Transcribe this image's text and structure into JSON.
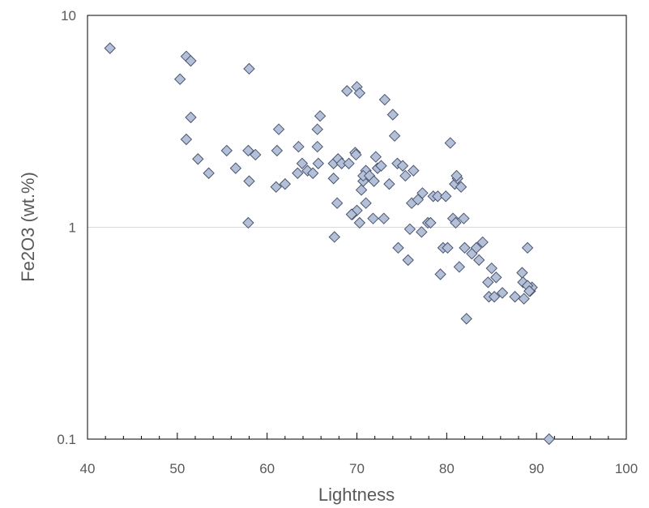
{
  "chart_data": {
    "type": "scatter",
    "title": "",
    "xlabel": "Lightness",
    "ylabel": "Fe2O3 (wt.%)",
    "xlim": [
      40,
      100
    ],
    "ylim": [
      0.1,
      10
    ],
    "y_scale": "log",
    "x_ticks": [
      40,
      50,
      60,
      70,
      80,
      90,
      100
    ],
    "x_tick_labels": [
      "40",
      "50",
      "60",
      "70",
      "80",
      "90",
      "100"
    ],
    "y_ticks": [
      0.1,
      1,
      10
    ],
    "y_tick_labels": [
      "0.1",
      "1",
      "10"
    ],
    "grid": "horizontal major lines",
    "legend": "none",
    "marker": "diamond",
    "marker_fill": "#b4c0d8",
    "marker_stroke": "#4a5570",
    "series": [
      {
        "name": "",
        "x": [
          42.5,
          51.0,
          51.5,
          50.3,
          58.0,
          51.5,
          51.0,
          52.3,
          53.5,
          55.5,
          56.5,
          57.9,
          58.0,
          58.7,
          57.9,
          61.3,
          61.1,
          61.0,
          62.0,
          63.5,
          63.9,
          63.4,
          64.5,
          65.1,
          65.6,
          65.9,
          65.6,
          65.7,
          67.4,
          67.5,
          67.9,
          67.8,
          67.4,
          68.3,
          68.9,
          69.1,
          69.5,
          69.8,
          70.0,
          70.3,
          70.5,
          70.0,
          70.3,
          69.4,
          69.9,
          70.7,
          71.0,
          70.7,
          71.0,
          71.4,
          71.8,
          71.9,
          72.1,
          72.3,
          72.7,
          73.1,
          73.0,
          73.6,
          74.0,
          74.2,
          74.5,
          74.6,
          75.1,
          75.4,
          75.7,
          75.9,
          76.1,
          76.3,
          76.8,
          77.2,
          77.3,
          77.9,
          78.2,
          78.5,
          79.0,
          79.3,
          79.6,
          79.9,
          80.4,
          80.1,
          80.7,
          80.9,
          81.0,
          81.2,
          81.1,
          81.4,
          81.6,
          81.9,
          82.0,
          82.2,
          82.8,
          83.3,
          83.6,
          84.0,
          84.6,
          84.7,
          85.0,
          85.3,
          85.5,
          86.2,
          87.6,
          88.4,
          88.5,
          88.6,
          89.0,
          89.3,
          89.5,
          89.0,
          89.2,
          91.4
        ],
        "y": [
          7.0,
          6.4,
          6.1,
          5.0,
          5.6,
          3.3,
          2.6,
          2.1,
          1.8,
          2.3,
          1.9,
          2.3,
          1.65,
          2.2,
          1.05,
          2.9,
          2.3,
          1.55,
          1.6,
          2.4,
          2.0,
          1.8,
          1.85,
          1.8,
          2.4,
          3.35,
          2.9,
          2.0,
          2.0,
          0.9,
          2.1,
          1.3,
          1.7,
          2.0,
          4.4,
          2.0,
          1.15,
          2.25,
          4.6,
          4.3,
          1.5,
          1.2,
          1.05,
          1.15,
          2.2,
          1.65,
          1.85,
          1.75,
          1.3,
          1.75,
          1.1,
          1.65,
          2.15,
          1.9,
          1.95,
          4.0,
          1.1,
          1.6,
          3.4,
          2.7,
          2.0,
          0.8,
          1.95,
          1.75,
          0.7,
          0.98,
          1.3,
          1.85,
          1.35,
          0.95,
          1.45,
          1.05,
          1.05,
          1.4,
          1.4,
          0.6,
          0.8,
          1.4,
          2.5,
          0.8,
          1.1,
          1.6,
          1.05,
          1.7,
          1.75,
          0.65,
          1.55,
          1.1,
          0.8,
          0.37,
          0.75,
          0.8,
          0.7,
          0.85,
          0.55,
          0.47,
          0.64,
          0.47,
          0.58,
          0.49,
          0.47,
          0.61,
          0.55,
          0.46,
          0.8,
          0.5,
          0.52,
          0.53,
          0.5,
          0.1
        ]
      }
    ]
  }
}
